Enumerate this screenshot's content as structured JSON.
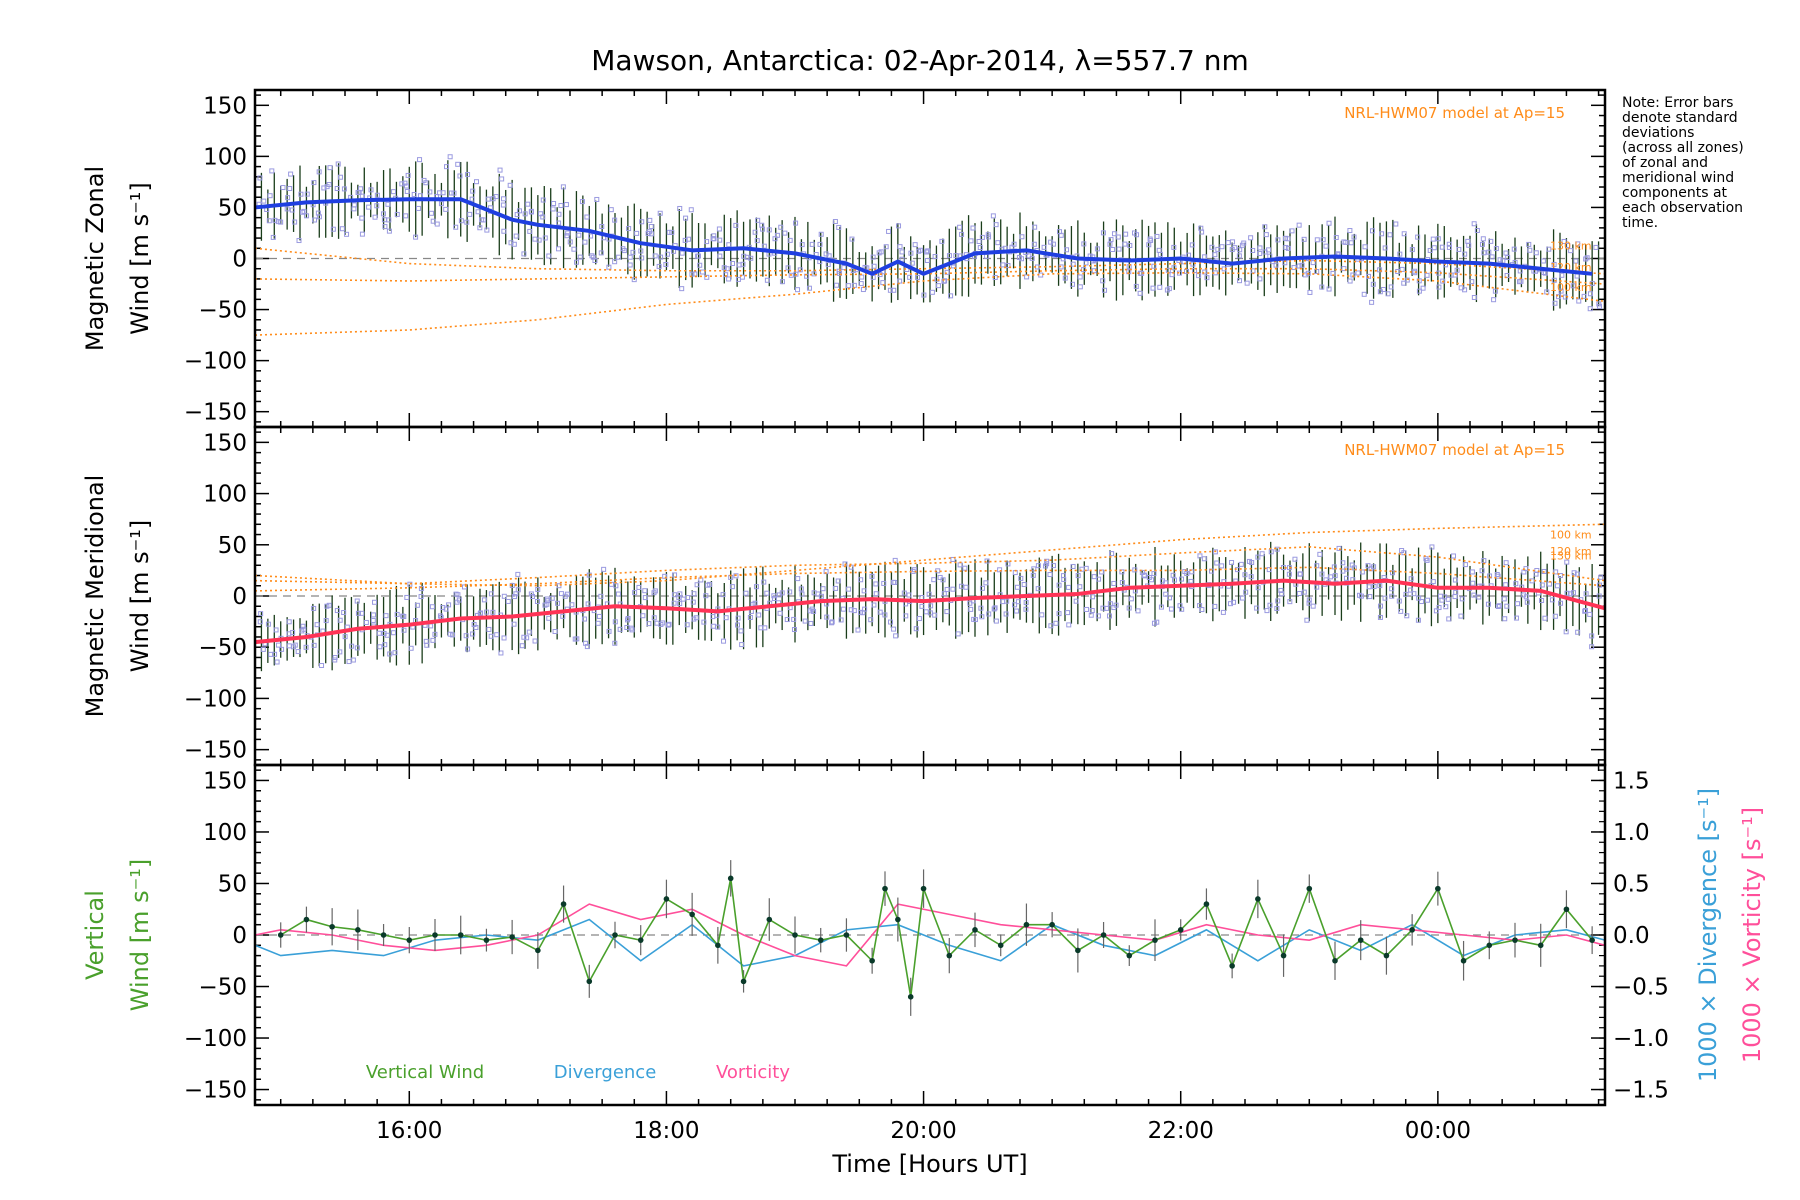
{
  "title": "Mawson, Antarctica: 02-Apr-2014, λ=557.7 nm",
  "note_lines": [
    "Note: Error bars",
    "denote standard",
    "deviations",
    "(across all zones)",
    "of zonal and",
    "meridional wind",
    "components at",
    "each observation",
    "time."
  ],
  "colors": {
    "zonal": "#1f3fe0",
    "meridional": "#ff3355",
    "vertical": "#4aa02c",
    "divergence": "#3aa0d8",
    "vorticity": "#ff4f9a",
    "model": "#ff8c1a",
    "samples": "#9a9ae0",
    "errorbar": "#1a3d1a"
  },
  "chart_data": [
    {
      "type": "line",
      "ylabel_line1": "Magnetic Zonal",
      "ylabel_line2": "Wind [m s⁻¹]",
      "xlim": [
        14.8,
        25.3
      ],
      "ylim": [
        -165,
        165
      ],
      "yticks": [
        150,
        100,
        50,
        0,
        -50,
        -100,
        -150
      ],
      "grid": false,
      "model_label": "NRL-HWM07 model at Ap=15",
      "model_alt_labels": [
        "130 km",
        "120 km",
        "100 km"
      ],
      "series": [
        {
          "name": "",
          "role": "mean",
          "x": [
            14.8,
            15.2,
            15.6,
            16.0,
            16.4,
            16.8,
            17.0,
            17.4,
            17.8,
            18.2,
            18.6,
            19.0,
            19.4,
            19.6,
            19.8,
            20.0,
            20.2,
            20.4,
            20.8,
            21.2,
            21.6,
            22.0,
            22.4,
            22.8,
            23.2,
            23.6,
            24.0,
            24.4,
            24.8,
            25.2
          ],
          "y": [
            50,
            55,
            57,
            58,
            58,
            38,
            33,
            27,
            15,
            8,
            10,
            5,
            -5,
            -15,
            -3,
            -15,
            -5,
            5,
            8,
            0,
            -2,
            0,
            -5,
            0,
            2,
            0,
            -3,
            -5,
            -10,
            -15
          ]
        },
        {
          "name": "",
          "role": "model_100km",
          "x": [
            14.8,
            16,
            17,
            18,
            19,
            20,
            21,
            22,
            23,
            24,
            25.3
          ],
          "y": [
            -75,
            -70,
            -60,
            -45,
            -35,
            -22,
            -15,
            -14,
            -15,
            -22,
            -42
          ]
        },
        {
          "name": "",
          "role": "model_120km",
          "x": [
            14.8,
            16,
            17,
            18,
            19,
            20,
            21,
            22,
            23,
            24,
            25.3
          ],
          "y": [
            -20,
            -22,
            -20,
            -18,
            -16,
            -15,
            -12,
            -10,
            -10,
            -14,
            -25
          ]
        },
        {
          "name": "",
          "role": "model_130km",
          "x": [
            14.8,
            16,
            17,
            18,
            19,
            20,
            21,
            22,
            23,
            24,
            25.3
          ],
          "y": [
            10,
            -5,
            -10,
            -12,
            -12,
            -10,
            -8,
            -5,
            -2,
            -5,
            -15
          ]
        }
      ]
    },
    {
      "type": "line",
      "ylabel_line1": "Magnetic Meridional",
      "ylabel_line2": "Wind [m s⁻¹]",
      "xlim": [
        14.8,
        25.3
      ],
      "ylim": [
        -165,
        165
      ],
      "yticks": [
        150,
        100,
        50,
        0,
        -50,
        -100,
        -150
      ],
      "grid": false,
      "model_label": "NRL-HWM07 model at Ap=15",
      "model_alt_labels": [
        "130 km",
        "120 km",
        "100 km"
      ],
      "series": [
        {
          "name": "",
          "role": "mean",
          "x": [
            14.8,
            15.2,
            15.6,
            16.0,
            16.4,
            16.8,
            17.2,
            17.6,
            18.0,
            18.4,
            18.8,
            19.2,
            19.6,
            20.0,
            20.4,
            20.8,
            21.2,
            21.6,
            22.0,
            22.4,
            22.8,
            23.2,
            23.6,
            24.0,
            24.4,
            24.8,
            25.3
          ],
          "y": [
            -45,
            -40,
            -32,
            -28,
            -22,
            -20,
            -15,
            -10,
            -12,
            -15,
            -10,
            -5,
            -3,
            -5,
            -2,
            0,
            2,
            8,
            10,
            12,
            15,
            12,
            15,
            8,
            8,
            5,
            -12
          ]
        },
        {
          "name": "",
          "role": "model_100km",
          "x": [
            14.8,
            16,
            17,
            18,
            19,
            20,
            21,
            22,
            23,
            24,
            25.3
          ],
          "y": [
            20,
            12,
            10,
            15,
            25,
            35,
            45,
            55,
            62,
            66,
            70
          ]
        },
        {
          "name": "",
          "role": "model_120km",
          "x": [
            14.8,
            16,
            17,
            18,
            19,
            20,
            21,
            22,
            23,
            24,
            25.3
          ],
          "y": [
            15,
            12,
            18,
            25,
            30,
            32,
            35,
            42,
            48,
            38,
            15
          ]
        },
        {
          "name": "",
          "role": "model_130km",
          "x": [
            14.8,
            16,
            17,
            18,
            19,
            20,
            21,
            22,
            23,
            24,
            25.3
          ],
          "y": [
            5,
            8,
            12,
            18,
            22,
            24,
            25,
            25,
            28,
            22,
            10
          ]
        }
      ]
    },
    {
      "type": "line",
      "ylabel_line1": "Vertical",
      "ylabel_line2": "Wind [m s⁻¹]",
      "y2label_div": "1000 × Divergence [s⁻¹]",
      "y2label_vort": "1000 × Vorticity [s⁻¹]",
      "xlabel": "Time [Hours UT]",
      "xlim": [
        14.8,
        25.3
      ],
      "ylim": [
        -165,
        165
      ],
      "y2lim": [
        -1.65,
        1.65
      ],
      "yticks": [
        150,
        100,
        50,
        0,
        -50,
        -100,
        -150
      ],
      "y2ticks": [
        "1.5",
        "1.0",
        "0.5",
        "0.0",
        "−0.5",
        "−1.0",
        "−1.5"
      ],
      "xticks": [
        {
          "v": 16,
          "label": "16:00"
        },
        {
          "v": 18,
          "label": "18:00"
        },
        {
          "v": 20,
          "label": "20:00"
        },
        {
          "v": 22,
          "label": "22:00"
        },
        {
          "v": 24,
          "label": "00:00"
        }
      ],
      "legend": [
        "Vertical Wind",
        "Divergence",
        "Vorticity"
      ],
      "grid": false,
      "series": [
        {
          "name": "Vertical Wind",
          "x": [
            15.0,
            15.2,
            15.4,
            15.6,
            15.8,
            16.0,
            16.2,
            16.4,
            16.6,
            16.8,
            17.0,
            17.2,
            17.4,
            17.6,
            17.8,
            18.0,
            18.2,
            18.4,
            18.5,
            18.6,
            18.8,
            19.0,
            19.2,
            19.4,
            19.6,
            19.7,
            19.8,
            19.9,
            20.0,
            20.2,
            20.4,
            20.6,
            20.8,
            21.0,
            21.2,
            21.4,
            21.6,
            21.8,
            22.0,
            22.2,
            22.4,
            22.6,
            22.8,
            23.0,
            23.2,
            23.4,
            23.6,
            23.8,
            24.0,
            24.2,
            24.4,
            24.6,
            24.8,
            25.0,
            25.2
          ],
          "y": [
            0,
            15,
            8,
            5,
            0,
            -5,
            0,
            0,
            -5,
            -2,
            -15,
            30,
            -45,
            0,
            -5,
            35,
            20,
            -10,
            55,
            -45,
            15,
            0,
            -5,
            0,
            -25,
            45,
            15,
            -60,
            45,
            -20,
            5,
            -10,
            10,
            10,
            -15,
            0,
            -20,
            -5,
            5,
            30,
            -30,
            35,
            -20,
            45,
            -25,
            -5,
            -20,
            5,
            45,
            -25,
            -10,
            -5,
            -10,
            25,
            -5
          ]
        },
        {
          "name": "Divergence",
          "x": [
            14.8,
            15.0,
            15.4,
            15.8,
            16.2,
            16.6,
            17.0,
            17.4,
            17.8,
            18.2,
            18.6,
            19.0,
            19.4,
            19.8,
            20.2,
            20.6,
            21.0,
            21.4,
            21.8,
            22.2,
            22.6,
            23.0,
            23.4,
            23.8,
            24.2,
            24.6,
            25.0,
            25.3
          ],
          "y": [
            -0.1,
            -0.2,
            -0.15,
            -0.2,
            -0.05,
            0.0,
            -0.05,
            0.15,
            -0.25,
            0.1,
            -0.3,
            -0.2,
            0.05,
            0.1,
            -0.1,
            -0.25,
            0.1,
            -0.1,
            -0.2,
            0.05,
            -0.25,
            0.05,
            -0.15,
            0.1,
            -0.2,
            0.0,
            0.05,
            -0.05
          ]
        },
        {
          "name": "Vorticity",
          "x": [
            14.8,
            15.0,
            15.4,
            15.8,
            16.2,
            16.6,
            17.0,
            17.4,
            17.8,
            18.2,
            18.6,
            19.0,
            19.4,
            19.8,
            20.2,
            20.6,
            21.0,
            21.4,
            21.8,
            22.2,
            22.6,
            23.0,
            23.4,
            23.8,
            24.2,
            24.6,
            25.0,
            25.3
          ],
          "y": [
            0.0,
            0.05,
            0.0,
            -0.1,
            -0.15,
            -0.1,
            0.0,
            0.3,
            0.15,
            0.25,
            0.0,
            -0.2,
            -0.3,
            0.3,
            0.2,
            0.1,
            0.05,
            0.0,
            -0.05,
            0.1,
            0.0,
            -0.05,
            0.1,
            0.05,
            0.0,
            -0.05,
            0.0,
            -0.1
          ]
        }
      ]
    }
  ]
}
